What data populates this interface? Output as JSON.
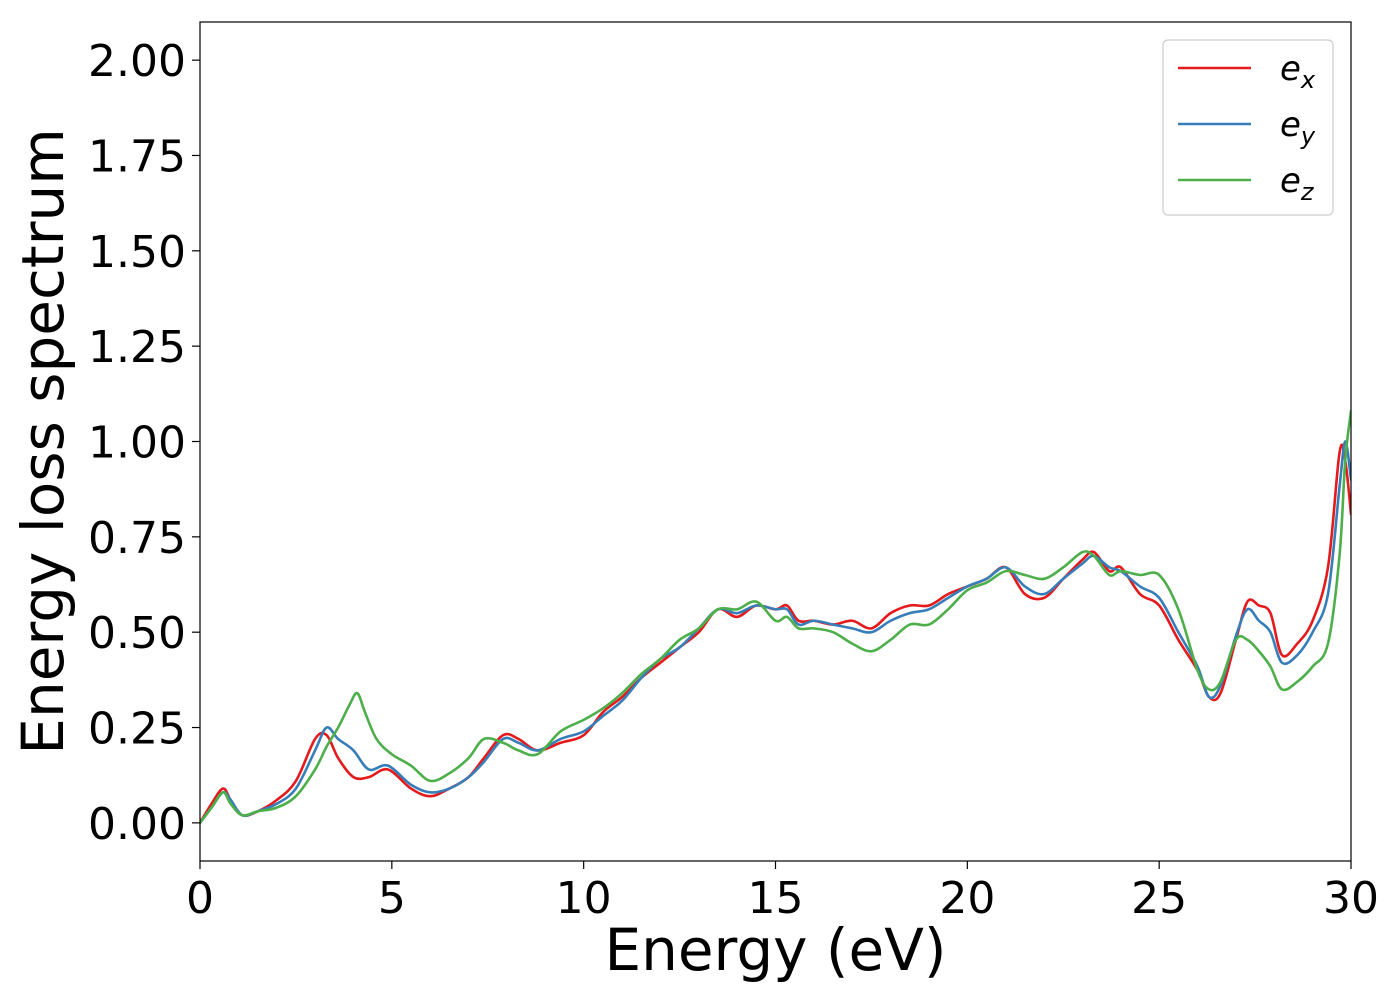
{
  "chart_data": {
    "type": "line",
    "title": "",
    "xlabel": "Energy (eV)",
    "ylabel": "Energy loss spectrum",
    "xlim": [
      0,
      30
    ],
    "ylim": [
      -0.1,
      2.1
    ],
    "xticks": [
      0,
      5,
      10,
      15,
      20,
      25,
      30
    ],
    "xtick_labels": [
      "0",
      "5",
      "10",
      "15",
      "20",
      "25",
      "30"
    ],
    "yticks": [
      0.0,
      0.25,
      0.5,
      0.75,
      1.0,
      1.25,
      1.5,
      1.75,
      2.0
    ],
    "ytick_labels": [
      "0.00",
      "0.25",
      "0.50",
      "0.75",
      "1.00",
      "1.25",
      "1.50",
      "1.75",
      "2.00"
    ],
    "grid": false,
    "legend_position": "top-right",
    "series": [
      {
        "name": "e",
        "subscript": "x",
        "color": "#e41a1c",
        "x": [
          0,
          0.3,
          0.6,
          0.8,
          1.1,
          1.5,
          2.0,
          2.5,
          3.0,
          3.3,
          3.6,
          4.0,
          4.4,
          4.9,
          5.5,
          6.0,
          6.5,
          7.0,
          7.4,
          7.9,
          8.3,
          8.8,
          9.4,
          10.0,
          10.5,
          11.0,
          11.5,
          12.0,
          12.5,
          13.0,
          13.5,
          14.0,
          14.5,
          15.0,
          15.3,
          15.6,
          16.0,
          16.5,
          17.0,
          17.5,
          18.0,
          18.5,
          19.0,
          19.5,
          20.0,
          20.5,
          21.0,
          21.5,
          22.0,
          22.5,
          23.0,
          23.3,
          23.7,
          24.0,
          24.5,
          25.0,
          25.5,
          26.0,
          26.3,
          26.6,
          27.0,
          27.3,
          27.6,
          27.9,
          28.2,
          28.6,
          29.0,
          29.4,
          29.7,
          29.85,
          30.0
        ],
        "y": [
          0.0,
          0.05,
          0.09,
          0.06,
          0.02,
          0.03,
          0.06,
          0.11,
          0.22,
          0.23,
          0.17,
          0.12,
          0.12,
          0.14,
          0.09,
          0.07,
          0.09,
          0.12,
          0.17,
          0.23,
          0.22,
          0.19,
          0.21,
          0.23,
          0.29,
          0.33,
          0.38,
          0.42,
          0.46,
          0.5,
          0.56,
          0.54,
          0.57,
          0.56,
          0.57,
          0.53,
          0.53,
          0.52,
          0.53,
          0.51,
          0.55,
          0.57,
          0.57,
          0.6,
          0.62,
          0.64,
          0.67,
          0.6,
          0.59,
          0.64,
          0.69,
          0.71,
          0.66,
          0.67,
          0.6,
          0.57,
          0.48,
          0.4,
          0.33,
          0.34,
          0.48,
          0.58,
          0.57,
          0.55,
          0.44,
          0.47,
          0.53,
          0.67,
          0.97,
          0.95,
          0.81
        ]
      },
      {
        "name": "e",
        "subscript": "y",
        "color": "#377eb8",
        "x": [
          0,
          0.3,
          0.6,
          0.8,
          1.1,
          1.5,
          2.0,
          2.5,
          3.0,
          3.3,
          3.6,
          4.0,
          4.4,
          4.9,
          5.5,
          6.0,
          6.5,
          7.0,
          7.4,
          7.9,
          8.3,
          8.8,
          9.4,
          10.0,
          10.5,
          11.0,
          11.5,
          12.0,
          12.5,
          13.0,
          13.5,
          14.0,
          14.5,
          15.0,
          15.3,
          15.6,
          16.0,
          16.5,
          17.0,
          17.5,
          18.0,
          18.5,
          19.0,
          19.5,
          20.0,
          20.5,
          21.0,
          21.5,
          22.0,
          22.5,
          23.0,
          23.3,
          23.7,
          24.0,
          24.5,
          25.0,
          25.5,
          26.0,
          26.3,
          26.6,
          27.0,
          27.3,
          27.6,
          27.9,
          28.2,
          28.6,
          29.0,
          29.4,
          29.7,
          29.85,
          30.0
        ],
        "y": [
          0.0,
          0.04,
          0.08,
          0.06,
          0.02,
          0.03,
          0.05,
          0.09,
          0.19,
          0.25,
          0.22,
          0.19,
          0.14,
          0.15,
          0.1,
          0.08,
          0.09,
          0.12,
          0.16,
          0.22,
          0.21,
          0.19,
          0.22,
          0.24,
          0.28,
          0.32,
          0.38,
          0.43,
          0.46,
          0.51,
          0.56,
          0.55,
          0.57,
          0.56,
          0.56,
          0.52,
          0.53,
          0.52,
          0.51,
          0.5,
          0.53,
          0.55,
          0.56,
          0.59,
          0.62,
          0.64,
          0.67,
          0.62,
          0.6,
          0.64,
          0.68,
          0.7,
          0.67,
          0.66,
          0.62,
          0.59,
          0.5,
          0.41,
          0.33,
          0.36,
          0.49,
          0.56,
          0.53,
          0.5,
          0.42,
          0.44,
          0.5,
          0.6,
          0.88,
          1.0,
          0.9
        ]
      },
      {
        "name": "e",
        "subscript": "z",
        "color": "#4daf4a",
        "x": [
          0,
          0.3,
          0.6,
          0.8,
          1.1,
          1.5,
          2.0,
          2.5,
          3.0,
          3.3,
          3.6,
          3.9,
          4.1,
          4.3,
          4.6,
          5.0,
          5.5,
          6.0,
          6.5,
          7.0,
          7.4,
          7.9,
          8.3,
          8.8,
          9.4,
          10.0,
          10.5,
          11.0,
          11.5,
          12.0,
          12.5,
          13.0,
          13.5,
          14.0,
          14.5,
          15.0,
          15.3,
          15.6,
          16.0,
          16.5,
          17.0,
          17.5,
          18.0,
          18.5,
          19.0,
          19.5,
          20.0,
          20.5,
          21.0,
          21.5,
          22.0,
          22.5,
          23.0,
          23.3,
          23.7,
          24.0,
          24.5,
          25.0,
          25.5,
          26.0,
          26.3,
          26.6,
          27.0,
          27.3,
          27.6,
          27.9,
          28.2,
          28.6,
          29.0,
          29.4,
          29.7,
          29.85,
          30.0
        ],
        "y": [
          0.0,
          0.04,
          0.08,
          0.05,
          0.02,
          0.03,
          0.04,
          0.07,
          0.14,
          0.2,
          0.25,
          0.31,
          0.34,
          0.29,
          0.22,
          0.18,
          0.15,
          0.11,
          0.13,
          0.17,
          0.22,
          0.21,
          0.19,
          0.18,
          0.24,
          0.27,
          0.3,
          0.34,
          0.39,
          0.43,
          0.48,
          0.51,
          0.56,
          0.56,
          0.58,
          0.53,
          0.54,
          0.51,
          0.51,
          0.5,
          0.47,
          0.45,
          0.48,
          0.52,
          0.52,
          0.56,
          0.61,
          0.63,
          0.66,
          0.65,
          0.64,
          0.67,
          0.71,
          0.7,
          0.65,
          0.66,
          0.65,
          0.65,
          0.56,
          0.4,
          0.35,
          0.37,
          0.48,
          0.48,
          0.45,
          0.41,
          0.35,
          0.37,
          0.41,
          0.47,
          0.7,
          0.95,
          1.08
        ]
      }
    ]
  }
}
